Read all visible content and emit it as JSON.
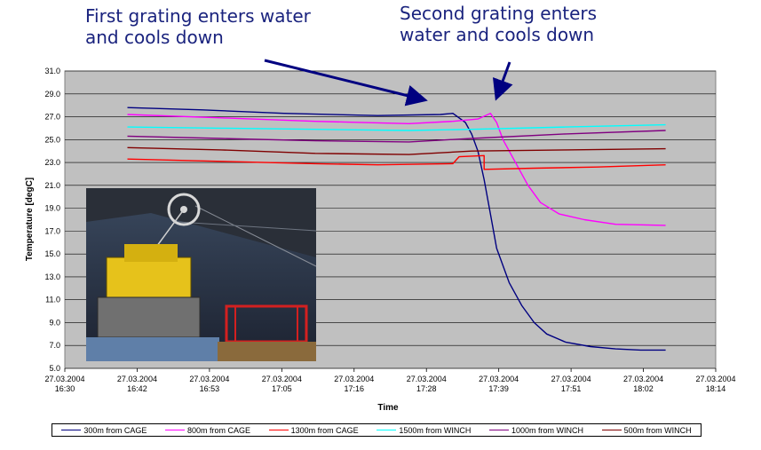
{
  "annotations": {
    "first": "First grating enters water\nand cools down",
    "second": "Second grating enters\nwater and cools down"
  },
  "chart_data": {
    "type": "line",
    "title": "",
    "xlabel": "Time",
    "ylabel": "Temperature [degC]",
    "ylim": [
      5.0,
      31.0
    ],
    "yticks": [
      "5.0",
      "7.0",
      "9.0",
      "11.0",
      "13.0",
      "15.0",
      "17.0",
      "19.0",
      "21.0",
      "23.0",
      "25.0",
      "27.0",
      "29.0",
      "31.0"
    ],
    "xticks": [
      {
        "date": "27.03.2004",
        "time": "16:30"
      },
      {
        "date": "27.03.2004",
        "time": "16:42"
      },
      {
        "date": "27.03.2004",
        "time": "16:53"
      },
      {
        "date": "27.03.2004",
        "time": "17:05"
      },
      {
        "date": "27.03.2004",
        "time": "17:16"
      },
      {
        "date": "27.03.2004",
        "time": "17:28"
      },
      {
        "date": "27.03.2004",
        "time": "17:39"
      },
      {
        "date": "27.03.2004",
        "time": "17:51"
      },
      {
        "date": "27.03.2004",
        "time": "18:02"
      },
      {
        "date": "27.03.2004",
        "time": "18:14"
      }
    ],
    "grid": true,
    "plot_background": "#c0c0c0",
    "legend_position": "bottom",
    "series": [
      {
        "name": "300m from CAGE",
        "color": "#000080",
        "points": [
          [
            "16:40",
            27.8
          ],
          [
            "16:52",
            27.6
          ],
          [
            "17:05",
            27.3
          ],
          [
            "17:20",
            27.1
          ],
          [
            "17:30",
            27.2
          ],
          [
            "17:32",
            27.3
          ],
          [
            "17:34",
            26.5
          ],
          [
            "17:35",
            25.5
          ],
          [
            "17:36",
            24.0
          ],
          [
            "17:37",
            21.5
          ],
          [
            "17:38",
            18.5
          ],
          [
            "17:39",
            15.5
          ],
          [
            "17:41",
            12.5
          ],
          [
            "17:43",
            10.5
          ],
          [
            "17:45",
            9.0
          ],
          [
            "17:47",
            8.0
          ],
          [
            "17:50",
            7.3
          ],
          [
            "17:54",
            6.9
          ],
          [
            "17:58",
            6.7
          ],
          [
            "18:02",
            6.6
          ],
          [
            "18:06",
            6.6
          ]
        ]
      },
      {
        "name": "800m from CAGE",
        "color": "#ff00ff",
        "points": [
          [
            "16:40",
            27.2
          ],
          [
            "16:55",
            26.9
          ],
          [
            "17:10",
            26.6
          ],
          [
            "17:25",
            26.4
          ],
          [
            "17:32",
            26.6
          ],
          [
            "17:36",
            26.8
          ],
          [
            "17:38",
            27.3
          ],
          [
            "17:39",
            26.5
          ],
          [
            "17:40",
            25.0
          ],
          [
            "17:42",
            23.0
          ],
          [
            "17:44",
            21.0
          ],
          [
            "17:46",
            19.5
          ],
          [
            "17:49",
            18.5
          ],
          [
            "17:53",
            18.0
          ],
          [
            "17:58",
            17.6
          ],
          [
            "18:06",
            17.5
          ]
        ]
      },
      {
        "name": "1300m from CAGE",
        "color": "#ff0000",
        "points": [
          [
            "16:40",
            23.3
          ],
          [
            "16:55",
            23.1
          ],
          [
            "17:10",
            22.9
          ],
          [
            "17:20",
            22.8
          ],
          [
            "17:32",
            22.9
          ],
          [
            "17:33",
            23.5
          ],
          [
            "17:37",
            23.6
          ],
          [
            "17:37",
            22.4
          ],
          [
            "17:45",
            22.5
          ],
          [
            "17:55",
            22.6
          ],
          [
            "18:06",
            22.8
          ]
        ]
      },
      {
        "name": "1500m from WINCH",
        "color": "#00ffff",
        "points": [
          [
            "16:40",
            26.1
          ],
          [
            "16:55",
            26.0
          ],
          [
            "17:10",
            25.9
          ],
          [
            "17:25",
            25.8
          ],
          [
            "17:35",
            25.9
          ],
          [
            "17:50",
            26.1
          ],
          [
            "18:06",
            26.3
          ]
        ]
      },
      {
        "name": "1000m from WINCH",
        "color": "#800080",
        "points": [
          [
            "16:40",
            25.3
          ],
          [
            "16:55",
            25.1
          ],
          [
            "17:10",
            24.9
          ],
          [
            "17:25",
            24.8
          ],
          [
            "17:35",
            25.1
          ],
          [
            "17:50",
            25.5
          ],
          [
            "18:06",
            25.8
          ]
        ]
      },
      {
        "name": "500m from WINCH",
        "color": "#800000",
        "points": [
          [
            "16:40",
            24.3
          ],
          [
            "16:55",
            24.1
          ],
          [
            "17:10",
            23.8
          ],
          [
            "17:25",
            23.7
          ],
          [
            "17:35",
            24.0
          ],
          [
            "17:50",
            24.1
          ],
          [
            "18:06",
            24.2
          ]
        ]
      }
    ]
  }
}
